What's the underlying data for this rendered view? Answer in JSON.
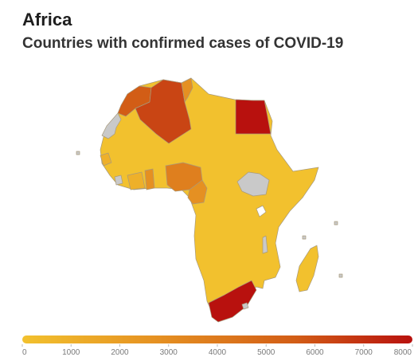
{
  "header": {
    "title": "Africa",
    "subtitle": "Countries with confirmed cases of COVID-19"
  },
  "colors": {
    "low": "#f2c12e",
    "scale": [
      "#f2c12e",
      "#eeb02a",
      "#eaa126",
      "#e59022",
      "#df7f1e",
      "#d96e1a",
      "#d25d16",
      "#c94514",
      "#c12f12",
      "#b8110e"
    ],
    "no_data": "#c9c9c9",
    "ocean": "#ffffff"
  },
  "legend": {
    "min": 0,
    "max": 8000,
    "ticks": [
      "0",
      "1000",
      "2000",
      "3000",
      "4000",
      "5000",
      "6000",
      "7000",
      "8000"
    ]
  },
  "map_regions": [
    {
      "name": "Morocco",
      "color": "#d25d16"
    },
    {
      "name": "Algeria",
      "color": "#c94514"
    },
    {
      "name": "Tunisia",
      "color": "#e59022"
    },
    {
      "name": "Egypt",
      "color": "#b8110e"
    },
    {
      "name": "Western Sahara",
      "color": "#c9c9c9"
    },
    {
      "name": "Ghana",
      "color": "#e59022"
    },
    {
      "name": "Nigeria",
      "color": "#df7f1e"
    },
    {
      "name": "Cameroon",
      "color": "#e59022"
    },
    {
      "name": "South Africa",
      "color": "#b8110e"
    },
    {
      "name": "South Sudan",
      "color": "#c9c9c9"
    }
  ]
}
